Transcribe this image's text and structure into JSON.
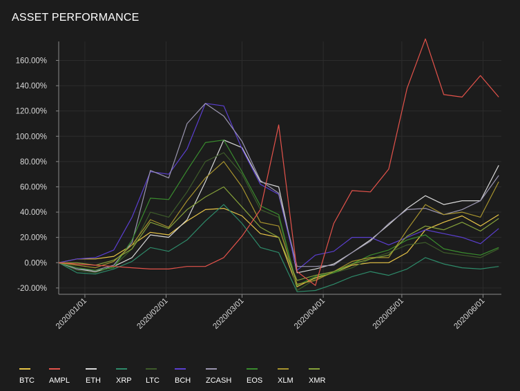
{
  "title": "ASSET PERFORMANCE",
  "colors": {
    "background": "#1c1c1c",
    "grid": "#2c2c2c",
    "axis": "#8a8a8a",
    "text": "#d8d8d8"
  },
  "chart_data": {
    "type": "line",
    "title": "ASSET PERFORMANCE",
    "xlabel": "",
    "ylabel": "",
    "x_range": [
      "2019-12-22",
      "2020-06-08"
    ],
    "ylim": [
      -25,
      175
    ],
    "y_ticks": [
      -20,
      0,
      20,
      40,
      60,
      80,
      100,
      120,
      140,
      160
    ],
    "y_tick_labels": [
      "-20.00%",
      "0.00%",
      "20.00%",
      "40.00%",
      "60.00%",
      "80.00%",
      "100.00%",
      "120.00%",
      "140.00%",
      "160.00%"
    ],
    "x_ticks": [
      "2020-01-01",
      "2020-02-01",
      "2020-03-01",
      "2020-04-01",
      "2020-05-01",
      "2020-06-01"
    ],
    "x_tick_labels": [
      "2020/01/01",
      "2020/02/01",
      "2020/03/01",
      "2020/04/01",
      "2020/05/01",
      "2020/06/01"
    ],
    "grid": true,
    "legend_position": "bottom",
    "x": [
      "2019-12-22",
      "2019-12-29",
      "2020-01-05",
      "2020-01-12",
      "2020-01-19",
      "2020-01-26",
      "2020-02-02",
      "2020-02-09",
      "2020-02-16",
      "2020-02-23",
      "2020-03-01",
      "2020-03-08",
      "2020-03-15",
      "2020-03-22",
      "2020-03-29",
      "2020-04-05",
      "2020-04-12",
      "2020-04-19",
      "2020-04-26",
      "2020-05-03",
      "2020-05-10",
      "2020-05-17",
      "2020-05-24",
      "2020-05-31",
      "2020-06-07"
    ],
    "series": [
      {
        "name": "BTC",
        "color": "#e8c547",
        "values": [
          0,
          3,
          3,
          5,
          14,
          24,
          22,
          33,
          42,
          43,
          37,
          23,
          20,
          -19,
          -12,
          -8,
          -2,
          0,
          0,
          8,
          26,
          32,
          37,
          29,
          38
        ]
      },
      {
        "name": "AMPL",
        "color": "#e5534b",
        "values": [
          0,
          -1,
          -2,
          -3,
          -4,
          -5,
          -5,
          -3,
          -3,
          4,
          21,
          42,
          109,
          -7,
          -18,
          31,
          57,
          56,
          74,
          138,
          177,
          133,
          131,
          148,
          131
        ]
      },
      {
        "name": "ETH",
        "color": "#d9d9d9",
        "values": [
          0,
          -5,
          -7,
          -3,
          4,
          22,
          20,
          34,
          64,
          97,
          91,
          64,
          60,
          -8,
          -5,
          -1,
          8,
          18,
          30,
          43,
          53,
          46,
          49,
          49,
          77
        ]
      },
      {
        "name": "XRP",
        "color": "#2e8b6a",
        "values": [
          0,
          -8,
          -9,
          -5,
          1,
          12,
          9,
          18,
          33,
          46,
          31,
          12,
          8,
          -23,
          -22,
          -17,
          -11,
          -7,
          -10,
          -5,
          4,
          -1,
          -4,
          -5,
          -3
        ]
      },
      {
        "name": "LTC",
        "color": "#3e5c2a",
        "values": [
          0,
          -6,
          -8,
          -3,
          11,
          40,
          36,
          56,
          80,
          87,
          70,
          42,
          36,
          -22,
          -13,
          -8,
          -4,
          3,
          8,
          14,
          16,
          8,
          6,
          4,
          11
        ]
      },
      {
        "name": "BCH",
        "color": "#5b3fd1",
        "values": [
          0,
          3,
          4,
          10,
          36,
          72,
          70,
          90,
          126,
          124,
          90,
          62,
          54,
          -6,
          6,
          9,
          20,
          20,
          14,
          20,
          26,
          23,
          20,
          15,
          27
        ]
      },
      {
        "name": "ZCASH",
        "color": "#9b96b0",
        "values": [
          0,
          -5,
          -6,
          -2,
          16,
          73,
          67,
          110,
          126,
          116,
          96,
          65,
          55,
          -3,
          -3,
          -2,
          8,
          17,
          31,
          42,
          43,
          38,
          42,
          49,
          69
        ]
      },
      {
        "name": "EOS",
        "color": "#3a8c2e",
        "values": [
          0,
          -4,
          -6,
          -4,
          18,
          51,
          50,
          73,
          95,
          97,
          72,
          45,
          38,
          -18,
          -11,
          -8,
          -1,
          6,
          10,
          18,
          22,
          11,
          8,
          6,
          12
        ]
      },
      {
        "name": "XLM",
        "color": "#a8942e",
        "values": [
          0,
          -2,
          -4,
          1,
          14,
          34,
          28,
          49,
          67,
          80,
          60,
          32,
          29,
          -17,
          -14,
          -7,
          1,
          4,
          4,
          26,
          46,
          38,
          40,
          36,
          64
        ]
      },
      {
        "name": "XMR",
        "color": "#86a23a",
        "values": [
          0,
          0,
          -2,
          2,
          11,
          32,
          27,
          42,
          52,
          60,
          44,
          28,
          20,
          -14,
          -10,
          -7,
          -1,
          3,
          6,
          21,
          29,
          26,
          32,
          25,
          35
        ]
      }
    ]
  }
}
